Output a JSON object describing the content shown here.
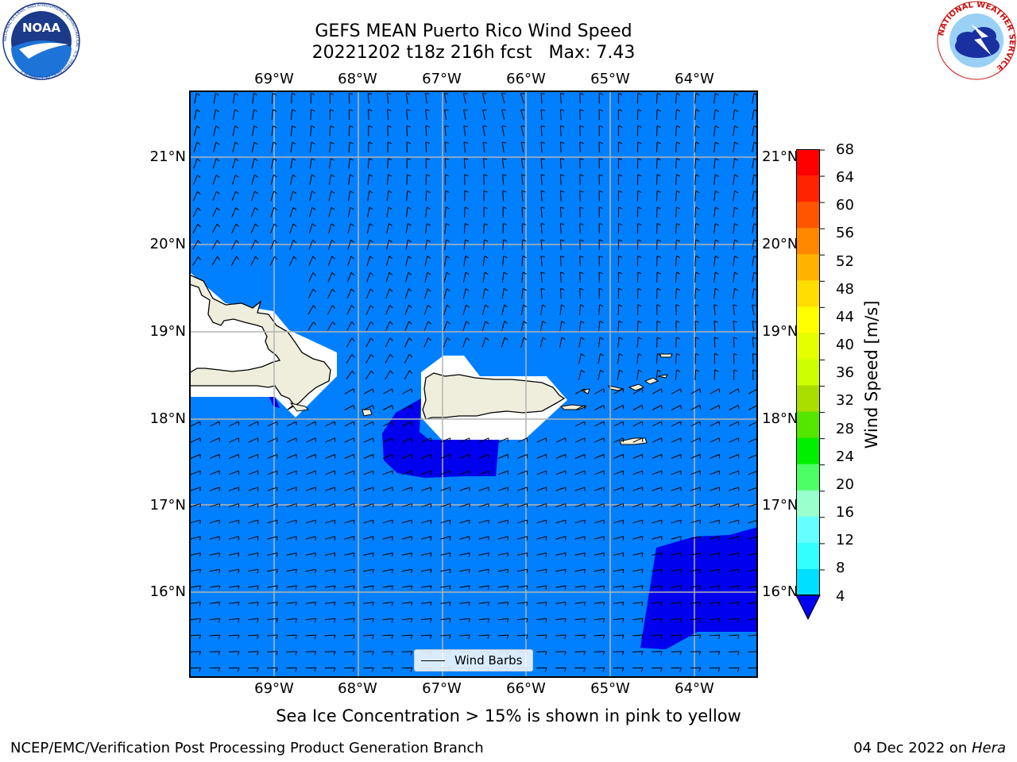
{
  "header": {
    "title_line1": "GEFS MEAN Puerto Rico Wind Speed",
    "title_line2": "20221202 t18z 216h fcst   Max: 7.43"
  },
  "logos": {
    "noaa_text": "NOAA",
    "noaa_ring_text": "NATIONAL OCEANIC AND ATMOSPHERIC ADMINISTRATION · U.S. DEPARTMENT OF COMMERCE",
    "nws_ring_text": "NATIONAL WEATHER SERVICE"
  },
  "map": {
    "lon_labels": [
      "69°W",
      "68°W",
      "67°W",
      "66°W",
      "65°W",
      "64°W"
    ],
    "lat_labels": [
      "21°N",
      "20°N",
      "19°N",
      "18°N",
      "17°N",
      "16°N"
    ],
    "legend_label": "Wind Barbs",
    "colors": {
      "ocean": "#0080ff",
      "strong": "#0000ee",
      "land": "#efeedc",
      "mask": "#ffffff"
    }
  },
  "colorbar": {
    "label": "Wind Speed [m/s]",
    "ticks": [
      "68",
      "64",
      "60",
      "56",
      "52",
      "48",
      "44",
      "40",
      "36",
      "32",
      "28",
      "24",
      "20",
      "16",
      "12",
      "8",
      "4"
    ],
    "colors_bottom_to_top": [
      "#0080ff",
      "#00dfff",
      "#33ffff",
      "#66ffff",
      "#99ffcc",
      "#4dff66",
      "#00ee00",
      "#55e600",
      "#aadd00",
      "#ccff00",
      "#e6ff00",
      "#ffff00",
      "#ffdd00",
      "#ffb300",
      "#ff8800",
      "#ff5500",
      "#ff2200",
      "#ff0000"
    ],
    "under_color": "#0000ee"
  },
  "footer": {
    "note": "Sea Ice Concentration > 15% is shown in pink to yellow",
    "left_credit": "NCEP/EMC/Verification Post Processing Product Generation Branch",
    "date_text": "04 Dec 2022 on ",
    "host_text": "Hera"
  }
}
